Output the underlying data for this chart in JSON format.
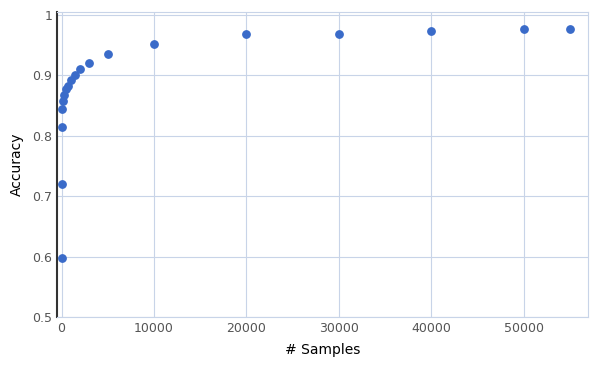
{
  "x": [
    10,
    20,
    50,
    100,
    200,
    300,
    500,
    700,
    1000,
    1500,
    2000,
    3000,
    5000,
    10000,
    20000,
    30000,
    40000,
    50000,
    55000
  ],
  "y": [
    0.597,
    0.72,
    0.815,
    0.845,
    0.858,
    0.868,
    0.877,
    0.883,
    0.892,
    0.9,
    0.91,
    0.92,
    0.935,
    0.952,
    0.968,
    0.968,
    0.973,
    0.976,
    0.976
  ],
  "xlabel": "# Samples",
  "ylabel": "Accuracy",
  "xlim": [
    -500,
    57000
  ],
  "ylim": [
    0.5,
    1.005
  ],
  "dot_color": "#3a6bc9",
  "dot_size": 28,
  "background_color": "#ffffff",
  "plot_background": "#ffffff",
  "grid_color": "#c8d4e8",
  "spine_color": "#333333",
  "xticks": [
    0,
    10000,
    20000,
    30000,
    40000,
    50000
  ],
  "yticks": [
    0.5,
    0.6,
    0.7,
    0.8,
    0.9,
    1.0
  ],
  "xlabel_fontsize": 10,
  "ylabel_fontsize": 10,
  "tick_fontsize": 9
}
